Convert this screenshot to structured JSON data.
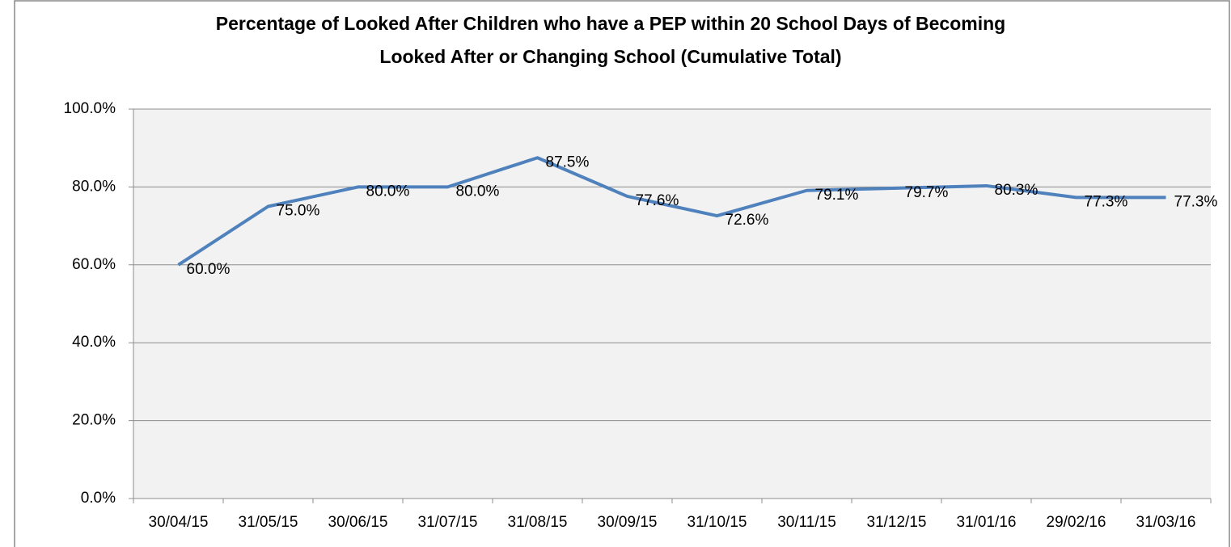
{
  "chart_data": {
    "type": "line",
    "title": [
      "Percentage of Looked After Children who have a PEP within 20 School Days of Becoming",
      "Looked After or Changing School (Cumulative Total)"
    ],
    "categories": [
      "30/04/15",
      "31/05/15",
      "30/06/15",
      "31/07/15",
      "31/08/15",
      "30/09/15",
      "31/10/15",
      "30/11/15",
      "31/12/15",
      "31/01/16",
      "29/02/16",
      "31/03/16"
    ],
    "values": [
      60,
      75,
      80,
      80,
      87.5,
      77.6,
      72.6,
      79.1,
      79.7,
      80.3,
      77.3,
      77.3
    ],
    "value_labels": [
      "60.0%",
      "75.0%",
      "80.0%",
      "80.0%",
      "87.5%",
      "77.6%",
      "72.6%",
      "79.1%",
      "79.7%",
      "80.3%",
      "77.3%",
      "77.3%"
    ],
    "color": "#4f81bd",
    "ylim": [
      0,
      100
    ],
    "yticks": [
      {
        "value": 0,
        "label": "0.0%"
      },
      {
        "value": 20,
        "label": "20.0%"
      },
      {
        "value": 40,
        "label": "40.0%"
      },
      {
        "value": 60,
        "label": "60.0%"
      },
      {
        "value": 80,
        "label": "80.0%"
      },
      {
        "value": 100,
        "label": "100.0%"
      }
    ],
    "grid": true
  }
}
